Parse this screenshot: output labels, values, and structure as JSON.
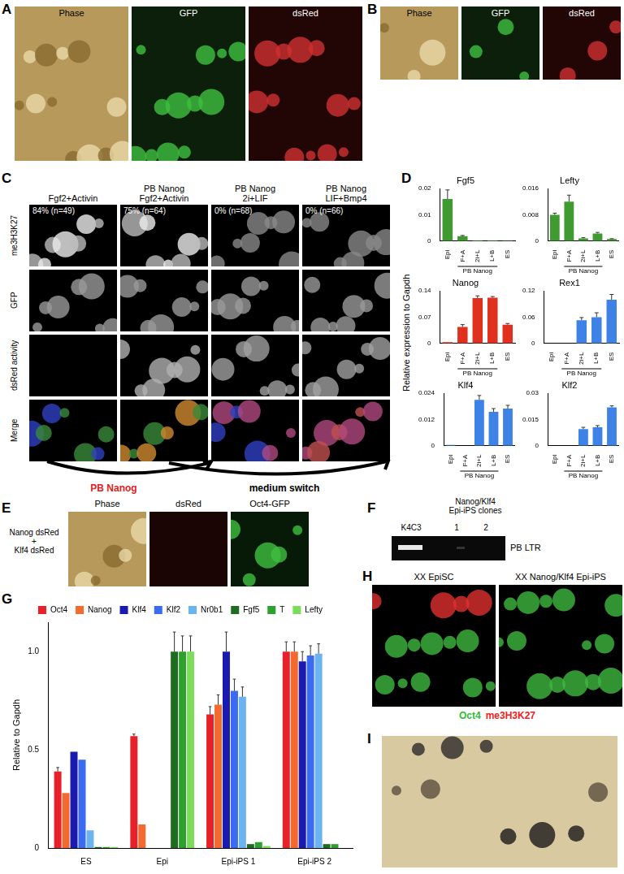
{
  "panels": {
    "A": {
      "letter": "A",
      "labels": [
        "Phase",
        "GFP",
        "dsRed"
      ]
    },
    "B": {
      "letter": "B",
      "labels": [
        "Phase",
        "GFP",
        "dsRed"
      ]
    },
    "C": {
      "letter": "C",
      "columns": [
        {
          "header": "Fgf2+Activin",
          "stat": "84% (n=49)"
        },
        {
          "header": "PB Nanog\nFgf2+Activin",
          "stat": "75% (n=64)"
        },
        {
          "header": "PB Nanog\n2i+LIF",
          "stat": "0% (n=68)"
        },
        {
          "header": "PB Nanog\nLIF+Bmp4",
          "stat": "0% (n=66)"
        }
      ],
      "rows": [
        "me3H3K27",
        "GFP",
        "dsRed activity",
        "Merge"
      ],
      "arrows": [
        "PB Nanog",
        "medium switch"
      ]
    },
    "D": {
      "letter": "D",
      "y_label": "Relative expression to Gapdh",
      "group_label": "PB Nanog"
    },
    "E": {
      "letter": "E",
      "row_label": "Nanog dsRed\n+\nKlf4 dsRed",
      "labels": [
        "Phase",
        "dsRed",
        "Oct4-GFP"
      ]
    },
    "F": {
      "letter": "F",
      "header": "Nanog/Klf4\nEpi-iPS clones",
      "lanes": [
        "K4C3",
        "1",
        "2"
      ],
      "band_label": "PB LTR"
    },
    "G": {
      "letter": "G"
    },
    "H": {
      "letter": "H",
      "labels": [
        "XX EpiSC",
        "XX Nanog/Klf4 Epi-iPS"
      ],
      "stain": [
        {
          "text": "Oct4",
          "color": "#33bb33"
        },
        {
          "text": "me3H3K27",
          "color": "#ee2222"
        }
      ]
    },
    "I": {
      "letter": "I"
    }
  },
  "chart_data": [
    {
      "type": "bar",
      "title": "Fgf5",
      "categories": [
        "Epi",
        "F+A",
        "2i+L",
        "L+B",
        "ES"
      ],
      "values": [
        0.016,
        0.0018,
        0.0002,
        0.0002,
        0.0001
      ],
      "errors": [
        0.0035,
        0.0003,
        null,
        null,
        null
      ],
      "color": "#3f9a2f",
      "ylim": [
        0,
        0.02
      ],
      "yticks": [
        0,
        0.01,
        0.02
      ],
      "grid": false
    },
    {
      "type": "bar",
      "title": "Lefty",
      "categories": [
        "Epi",
        "F+A",
        "2i+L",
        "L+B",
        "ES"
      ],
      "values": [
        0.008,
        0.012,
        0.0008,
        0.0023,
        0.0006
      ],
      "errors": [
        0.0005,
        0.002,
        0.0002,
        0.0003,
        0.0001
      ],
      "color": "#3f9a2f",
      "ylim": [
        0,
        0.016
      ],
      "yticks": [
        0,
        0.008,
        0.016
      ],
      "grid": false
    },
    {
      "type": "bar",
      "title": "Nanog",
      "categories": [
        "Epi",
        "F+A",
        "2i+L",
        "L+B",
        "ES"
      ],
      "values": [
        0.003,
        0.044,
        0.121,
        0.122,
        0.05
      ],
      "errors": [
        null,
        0.006,
        0.006,
        0.003,
        0.003
      ],
      "color": "#e0301e",
      "ylim": [
        0,
        0.14
      ],
      "yticks": [
        0,
        0.07,
        0.14
      ],
      "grid": false
    },
    {
      "type": "bar",
      "title": "Rex1",
      "categories": [
        "Epi",
        "F+A",
        "2i+L",
        "L+B",
        "ES"
      ],
      "values": [
        0,
        0,
        0.053,
        0.06,
        0.1
      ],
      "errors": [
        null,
        null,
        0.006,
        0.01,
        0.012
      ],
      "color": "#3f82e6",
      "ylim": [
        0,
        0.12
      ],
      "yticks": [
        0,
        0.06,
        0.12
      ],
      "grid": false
    },
    {
      "type": "bar",
      "title": "Klf4",
      "categories": [
        "Epi",
        "F+A",
        "2i+L",
        "L+B",
        "ES"
      ],
      "values": [
        0.0003,
        0,
        0.021,
        0.0155,
        0.017
      ],
      "errors": [
        null,
        null,
        0.002,
        0.0015,
        0.0015
      ],
      "color": "#3f82e6",
      "ylim": [
        0,
        0.024
      ],
      "yticks": [
        0,
        0.012,
        0.024
      ],
      "grid": false
    },
    {
      "type": "bar",
      "title": "Klf2",
      "categories": [
        "Epi",
        "F+A",
        "2i+L",
        "L+B",
        "ES"
      ],
      "values": [
        0,
        0,
        0.0095,
        0.0105,
        0.022
      ],
      "errors": [
        null,
        null,
        0.001,
        0.001,
        0.0008
      ],
      "color": "#3f82e6",
      "ylim": [
        0,
        0.03
      ],
      "yticks": [
        0,
        0.015,
        0.03
      ],
      "grid": false
    },
    {
      "type": "bar",
      "y_label": "Relative to Gapdh",
      "categories": [
        "ES",
        "Epi",
        "Epi-iPS 1",
        "Epi-iPS 2"
      ],
      "series": [
        {
          "name": "Oct4",
          "color": "#e8202a",
          "values": [
            0.39,
            0.57,
            0.68,
            1.0
          ],
          "errors": [
            0.02,
            0.01,
            0.04,
            0.05
          ]
        },
        {
          "name": "Nanog",
          "color": "#f26a2e",
          "values": [
            0.28,
            0.12,
            0.73,
            1.0
          ],
          "errors": [
            null,
            null,
            0.05,
            0.05
          ]
        },
        {
          "name": "Klf4",
          "color": "#1a1ab0",
          "values": [
            0.49,
            0,
            1.0,
            0.95
          ],
          "errors": [
            null,
            null,
            0.1,
            0.05
          ]
        },
        {
          "name": "Klf2",
          "color": "#3b6bf0",
          "values": [
            0.45,
            0,
            0.8,
            0.98
          ],
          "errors": [
            null,
            null,
            0.06,
            0.05
          ]
        },
        {
          "name": "Nr0b1",
          "color": "#6cb4f0",
          "values": [
            0.09,
            0,
            0.77,
            0.99
          ],
          "errors": [
            null,
            null,
            0.05,
            0.05
          ]
        },
        {
          "name": "Fgf5",
          "color": "#1f6b1f",
          "values": [
            0.005,
            1.0,
            0.02,
            0.02
          ],
          "errors": [
            null,
            0.1,
            null,
            null
          ]
        },
        {
          "name": "T",
          "color": "#2ea02e",
          "values": [
            0.005,
            1.0,
            0.03,
            0.02
          ],
          "errors": [
            null,
            0.08,
            null,
            null
          ]
        },
        {
          "name": "Lefty",
          "color": "#7ddc5a",
          "values": [
            0.005,
            1.0,
            0.01,
            0
          ],
          "errors": [
            null,
            0.08,
            null,
            null
          ]
        }
      ],
      "ylim": [
        0,
        1.15
      ],
      "yticks": [
        0,
        0.5,
        {
          "value": 1,
          "label": "1.0"
        }
      ],
      "grid": false,
      "legend": "top"
    }
  ]
}
